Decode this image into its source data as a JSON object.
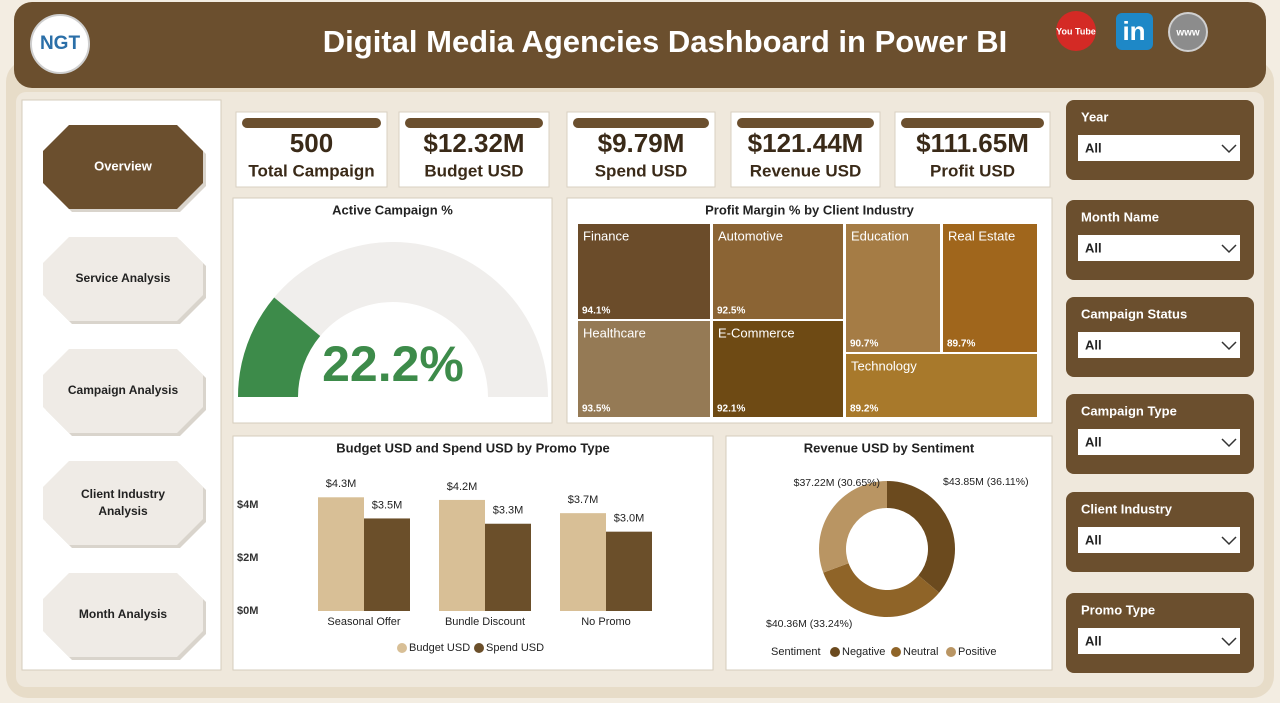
{
  "header": {
    "title": "Digital Media Agencies Dashboard in Power BI",
    "logo": "NGT",
    "social": [
      "You Tube",
      "in",
      "www"
    ]
  },
  "nav": [
    "Overview",
    "Service Analysis",
    "Campaign Analysis",
    "Client Industry Analysis",
    "Month Analysis"
  ],
  "kpis": [
    {
      "value": "500",
      "label": "Total Campaign"
    },
    {
      "value": "$12.32M",
      "label": "Budget USD"
    },
    {
      "value": "$9.79M",
      "label": "Spend USD"
    },
    {
      "value": "$121.44M",
      "label": "Revenue USD"
    },
    {
      "value": "$111.65M",
      "label": "Profit USD"
    }
  ],
  "slicers": [
    {
      "label": "Year",
      "value": "All"
    },
    {
      "label": "Month Name",
      "value": "All"
    },
    {
      "label": "Campaign Status",
      "value": "All"
    },
    {
      "label": "Campaign Type",
      "value": "All"
    },
    {
      "label": "Client Industry",
      "value": "All"
    },
    {
      "label": "Promo Type",
      "value": "All"
    }
  ],
  "chart_data": [
    {
      "type": "gauge",
      "title": "Active Campaign %",
      "values": [
        22.2
      ],
      "value_labels": [
        "22.2%"
      ],
      "ylim": [
        0,
        100
      ],
      "color": "#3d8b4a"
    },
    {
      "type": "treemap",
      "title": "Profit Margin % by Client Industry",
      "categories": [
        "Finance",
        "Automotive",
        "Education",
        "Real Estate",
        "Healthcare",
        "E-Commerce",
        "Technology"
      ],
      "values": [
        94.1,
        92.5,
        90.7,
        89.7,
        93.5,
        92.1,
        89.2
      ],
      "value_labels": [
        "94.1%",
        "92.5%",
        "90.7%",
        "89.7%",
        "93.5%",
        "92.1%",
        "89.2%"
      ],
      "colors": [
        "#6b4c2a",
        "#8b6434",
        "#a57c45",
        "#a0661c",
        "#957a55",
        "#6e4a14",
        "#a8792b"
      ]
    },
    {
      "type": "bar",
      "title": "Budget USD and Spend USD by Promo Type",
      "categories": [
        "Seasonal Offer",
        "Bundle Discount",
        "No Promo"
      ],
      "series": [
        {
          "name": "Budget USD",
          "color": "#d8bf96",
          "values": [
            4.3,
            4.2,
            3.7
          ],
          "value_labels": [
            "$4.3M",
            "$4.2M",
            "$3.7M"
          ]
        },
        {
          "name": "Spend USD",
          "color": "#6b4f2a",
          "values": [
            3.5,
            3.3,
            3.0
          ],
          "value_labels": [
            "$3.5M",
            "$3.3M",
            "$3.0M"
          ]
        }
      ],
      "ylim": [
        0,
        4.5
      ],
      "yticks": [
        {
          "value": 0,
          "label": "$0M"
        },
        {
          "value": 2,
          "label": "$2M"
        },
        {
          "value": 4,
          "label": "$4M"
        }
      ]
    },
    {
      "type": "donut",
      "title": "Revenue USD by Sentiment",
      "legend_title": "Sentiment",
      "categories": [
        "Negative",
        "Neutral",
        "Positive"
      ],
      "values": [
        43.85,
        40.36,
        37.22
      ],
      "value_labels": [
        "$43.85M (36.11%)",
        "$40.36M (33.24%)",
        "$37.22M (30.65%)"
      ],
      "colors": [
        "#6b4a1e",
        "#8f6428",
        "#b99563"
      ]
    }
  ]
}
